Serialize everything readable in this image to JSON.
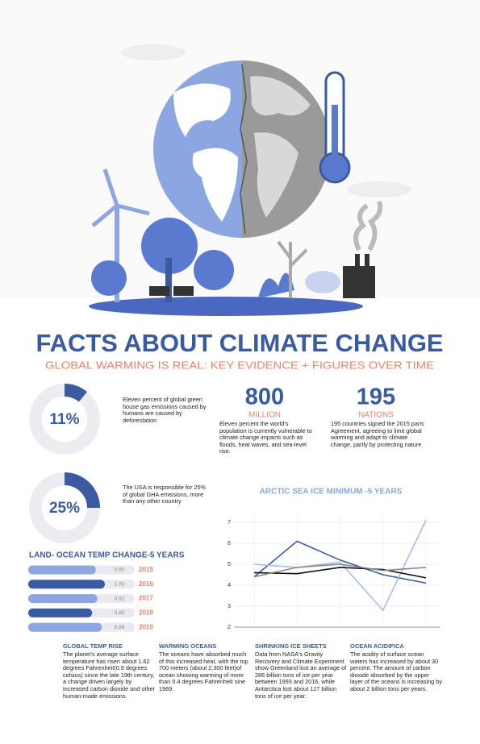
{
  "header": {
    "title": "FACTS ABOUT CLIMATE CHANGE",
    "subtitle": "GLOBAL WARMING IS REAL: KEY EVIDENCE + FIGURES OVER TIME"
  },
  "donuts": [
    {
      "value": 11,
      "value_label": "11%",
      "text": "Eleven percent of global green house gas emissions caused by humans are caused by deforestation"
    },
    {
      "value": 25,
      "value_label": "25%",
      "text": "The USA is responsible for 25% of global GHA emissions, more than any other country"
    }
  ],
  "stats": [
    {
      "number": 800,
      "unit": "MILLION",
      "text": "Eleven percent the world's population is currently vulnerable to climate change impacts such as floods, heat waves, and sea-level rise."
    },
    {
      "number": 195,
      "unit": "NATIONS",
      "text": "195 countries signed the 2015 paris Agreement, agreeing to limit global warming and adapt to climate change, partly by protecting nature"
    }
  ],
  "chart_data": [
    {
      "type": "line",
      "title": "ARCTIC SEA ICE MINIMUM -5 YEARS",
      "categories": [
        null,
        null,
        null,
        null,
        null
      ],
      "series": [
        {
          "color": "#3a5ba0",
          "values": [
            4.4,
            6.1,
            5.2,
            4.5,
            4.1
          ]
        },
        {
          "color": "#a9bdea",
          "values": [
            5.0,
            4.85,
            5.1,
            2.8,
            7.1
          ]
        },
        {
          "color": "#111111",
          "values": [
            4.6,
            4.55,
            4.85,
            4.75,
            4.35
          ]
        },
        {
          "color": "#888888",
          "values": [
            4.4,
            4.85,
            5.0,
            4.7,
            4.85
          ]
        }
      ],
      "ylim": [
        2,
        7
      ],
      "yticks": [
        2,
        3,
        4,
        5,
        6,
        7
      ],
      "grid": true
    },
    {
      "type": "bar",
      "orientation": "horizontal",
      "title": "LAND- OCEAN TEMP CHANGE-5 YEARS",
      "categories": [
        "2015",
        "2016",
        "2017",
        "2018",
        "2019"
      ],
      "values": [
        0.9,
        1.02,
        0.92,
        0.85,
        0.98
      ],
      "value_labels": [
        "0.90",
        "1.02",
        "0.92",
        "0.85",
        "0.98"
      ],
      "colors": [
        "#8ba6e0",
        "#3a5ba0",
        "#8ba6e0",
        "#3a5ba0",
        "#8ba6e0"
      ]
    }
  ],
  "facts": [
    {
      "heading": "GLOBAL TEMP RISE",
      "text": "The planet's average surface temperature has risen about 1.62 degrees Fahrenheit(0.9 degrees celsius) since the late 19th century, a change driven largely by increased carbon dioxide and other human-made emissions."
    },
    {
      "heading": "WARMING OCEANS",
      "text": "The oceans have absorbed much of this increased heat, with the top 700 meters (about 2,300 feet)of ocean showing warming of more than 0.4 degrees Fahrenheit sine 1969."
    },
    {
      "heading": "SHRINKING ICE SHEETS",
      "text": "Data from NASA's Gravity Recovery and Climate Experiment show Greenland lost an average of 286 billion tons of ice per year between 1993 and 2016, while Antarctica lost about 127 billion tons of ice per year."
    },
    {
      "heading": "OCEAN ACIDIFICA",
      "text": "The acidity of surface ocean waters has increased by about 30 percent. The amount of carbon dioxide absorbed by the upper layer of the oceans is increasing by about 2 billion tons per years."
    }
  ]
}
